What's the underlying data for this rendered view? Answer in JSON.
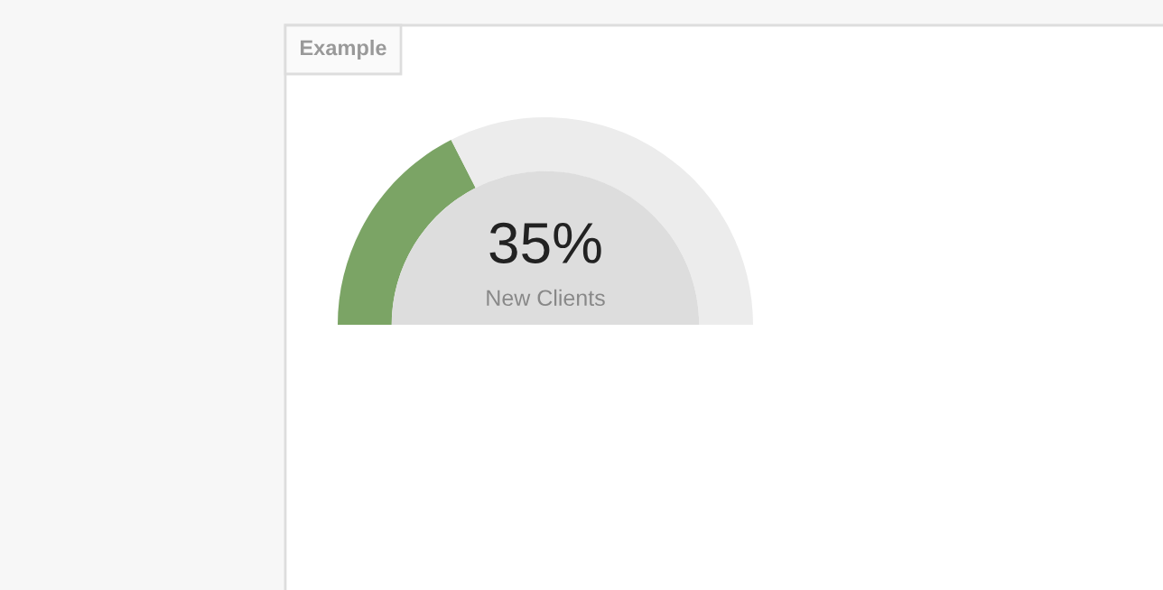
{
  "chart_data": {
    "type": "donut",
    "title": "Example",
    "categories": [
      null,
      null
    ],
    "values": [
      35,
      65
    ],
    "colors": [
      "#7ba465",
      "#ececec"
    ],
    "annotations": [
      "35%",
      "New Clients"
    ],
    "legend": false
  }
}
